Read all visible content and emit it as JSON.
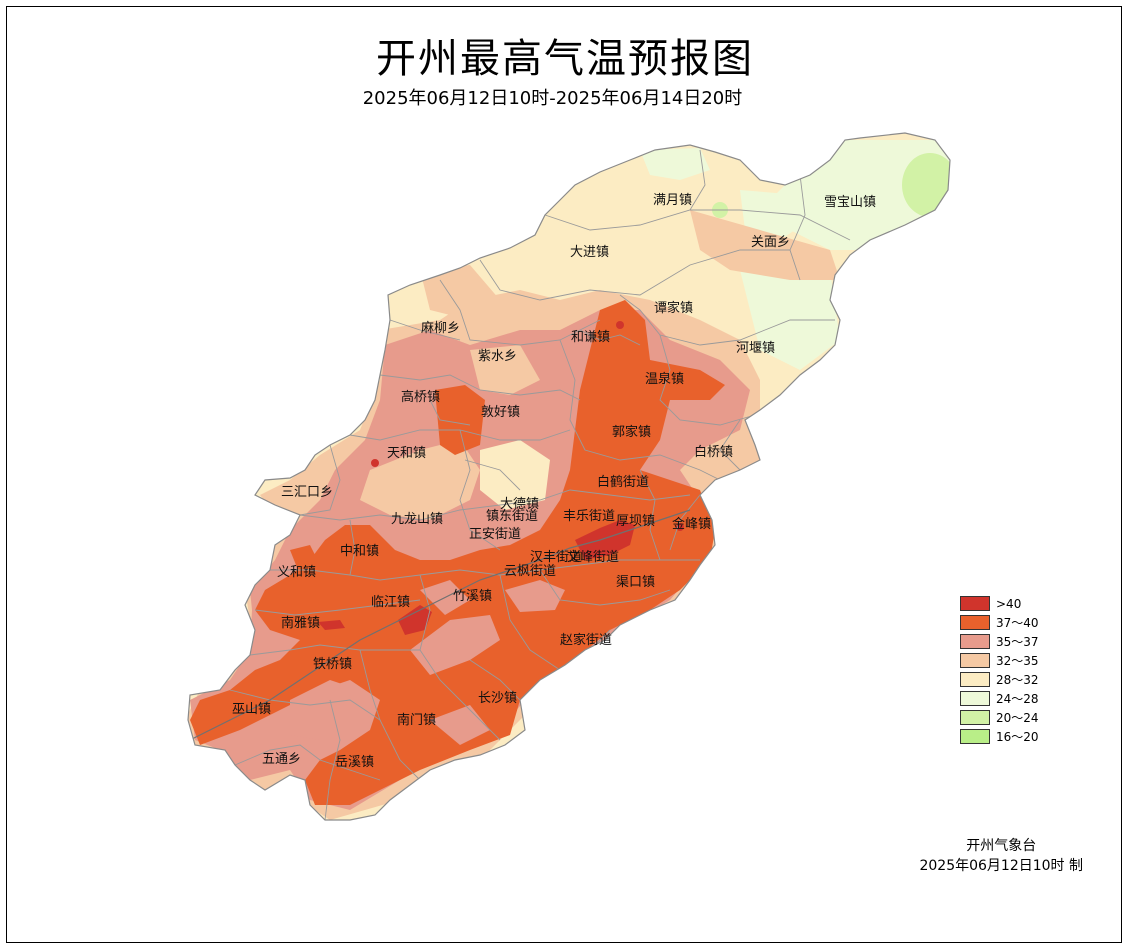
{
  "map": {
    "title": "开州最高气温预报图",
    "subtitle": "2025年06月12日10时-2025年06月14日20时"
  },
  "colors": {
    "above_40": "#d0342c",
    "t37_40": "#e8612c",
    "t35_37": "#e79b8c",
    "t32_35": "#f5c9a4",
    "t28_32": "#fcecc3",
    "t24_28": "#eef9d9",
    "t20_24": "#d2f2a6",
    "t16_20": "#b9ee88",
    "boundary": "#9a9a9a"
  },
  "legend": {
    "items": [
      {
        "label": ">40",
        "color": "#d0342c"
      },
      {
        "label": "37～40",
        "color": "#e8612c"
      },
      {
        "label": "35～37",
        "color": "#e79b8c"
      },
      {
        "label": "32～35",
        "color": "#f5c9a4"
      },
      {
        "label": "28～32",
        "color": "#fcecc3"
      },
      {
        "label": "24～28",
        "color": "#eef9d9"
      },
      {
        "label": "20～24",
        "color": "#d2f2a6"
      },
      {
        "label": "16～20",
        "color": "#b9ee88"
      }
    ]
  },
  "places": {
    "manyue": "满月镇",
    "xuebaoshan": "雪宝山镇",
    "dajin": "大进镇",
    "guanmian": "关面乡",
    "tanjia": "谭家镇",
    "maliu": "麻柳乡",
    "heqian": "和谦镇",
    "heyan": "河堰镇",
    "zishui": "紫水乡",
    "wenquan": "温泉镇",
    "gaoqiao": "高桥镇",
    "minhao": "敦好镇",
    "guojia": "郭家镇",
    "baiqiao": "白桥镇",
    "tianhe": "天和镇",
    "baihe": "白鹤街道",
    "sanhuikou": "三汇口乡",
    "dade": "大德镇",
    "zhendong": "镇东街道",
    "fenle": "丰乐街道",
    "houba": "厚坝镇",
    "jinfeng": "金峰镇",
    "jiulongshan": "九龙山镇",
    "zhengan": "正安街道",
    "zhonghe": "中和镇",
    "hanfeng": "汉丰街道",
    "wenfeng": "文峰街道",
    "yunfeng": "云枫街道",
    "yihe": "义和镇",
    "lianjiang": "临江镇",
    "zhuxi": "竹溪镇",
    "qukou": "渠口镇",
    "nanya": "南雅镇",
    "zhaojia": "赵家街道",
    "tiegiao": "铁桥镇",
    "changsha": "长沙镇",
    "wushan": "巫山镇",
    "nanmen": "南门镇",
    "wutong": "五通乡",
    "yuexi": "岳溪镇"
  },
  "credit": {
    "agency": "开州气象台",
    "issued": "2025年06月12日10时 制"
  }
}
